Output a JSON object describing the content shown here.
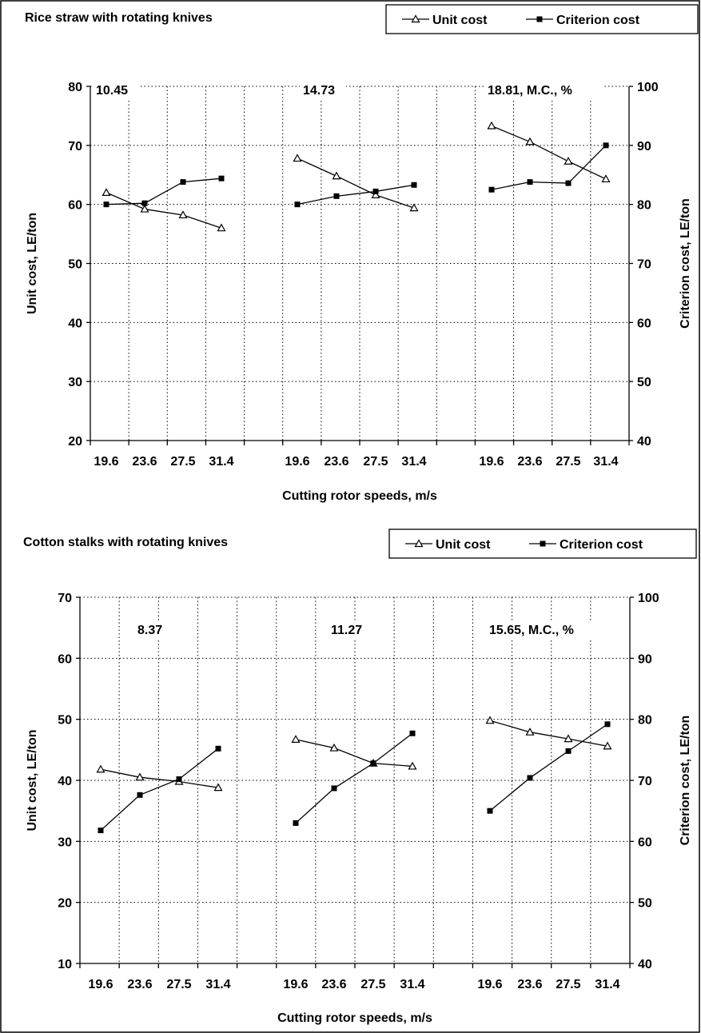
{
  "chart_data": [
    {
      "type": "line",
      "title": "Rice straw with rotating knives",
      "xlabel": "Cutting rotor speeds, m/s",
      "ylabel": "Unit cost, LE/ton",
      "y2label": "Criterion cost, LE/ton",
      "ylim": [
        20,
        80
      ],
      "yticks": [
        20,
        30,
        40,
        50,
        60,
        70,
        80
      ],
      "y2lim": [
        40,
        100
      ],
      "y2ticks": [
        40,
        50,
        60,
        70,
        80,
        90,
        100
      ],
      "grid": true,
      "legend_position": "top-right",
      "groups": [
        {
          "label": "10.45",
          "categories": [
            "19.6",
            "23.6",
            "27.5",
            "31.4"
          ]
        },
        {
          "label": "14.73",
          "categories": [
            "19.6",
            "23.6",
            "27.5",
            "31.4"
          ]
        },
        {
          "label": "18.81, M.C., %",
          "categories": [
            "19.6",
            "23.6",
            "27.5",
            "31.4"
          ]
        }
      ],
      "series": [
        {
          "name": "Unit cost",
          "marker": "triangle-open",
          "axis": "left",
          "values": [
            [
              62.0,
              59.2,
              58.2,
              56.0
            ],
            [
              67.8,
              64.8,
              61.6,
              59.4
            ],
            [
              73.3,
              70.6,
              67.3,
              64.3
            ]
          ]
        },
        {
          "name": "Criterion cost",
          "marker": "square-filled",
          "axis": "right",
          "values": [
            [
              80.0,
              80.2,
              83.8,
              84.4
            ],
            [
              80.0,
              81.4,
              82.2,
              83.3
            ],
            [
              82.5,
              83.8,
              83.6,
              90.0
            ]
          ]
        }
      ]
    },
    {
      "type": "line",
      "title": "Cotton stalks with rotating knives",
      "xlabel": "Cutting rotor speeds, m/s",
      "ylabel": "Unit cost, LE/ton",
      "y2label": "Criterion cost, LE/ton",
      "ylim": [
        10,
        70
      ],
      "yticks": [
        10,
        20,
        30,
        40,
        50,
        60,
        70
      ],
      "y2lim": [
        40,
        100
      ],
      "y2ticks": [
        40,
        50,
        60,
        70,
        80,
        90,
        100
      ],
      "grid": true,
      "legend_position": "top-right",
      "groups": [
        {
          "label": "8.37",
          "categories": [
            "19.6",
            "23.6",
            "27.5",
            "31.4"
          ]
        },
        {
          "label": "11.27",
          "categories": [
            "19.6",
            "23.6",
            "27.5",
            "31.4"
          ]
        },
        {
          "label": "15.65, M.C., %",
          "categories": [
            "19.6",
            "23.6",
            "27.5",
            "31.4"
          ]
        }
      ],
      "series": [
        {
          "name": "Unit cost",
          "marker": "triangle-open",
          "axis": "left",
          "values": [
            [
              41.8,
              40.5,
              39.8,
              38.8
            ],
            [
              46.7,
              45.3,
              42.8,
              42.3
            ],
            [
              49.8,
              47.9,
              46.8,
              45.6
            ]
          ]
        },
        {
          "name": "Criterion cost",
          "marker": "square-filled",
          "axis": "right",
          "values": [
            [
              61.8,
              67.6,
              70.2,
              75.2
            ],
            [
              63.0,
              68.7,
              72.8,
              77.7
            ],
            [
              65.0,
              70.4,
              74.8,
              79.2
            ]
          ]
        }
      ]
    }
  ]
}
